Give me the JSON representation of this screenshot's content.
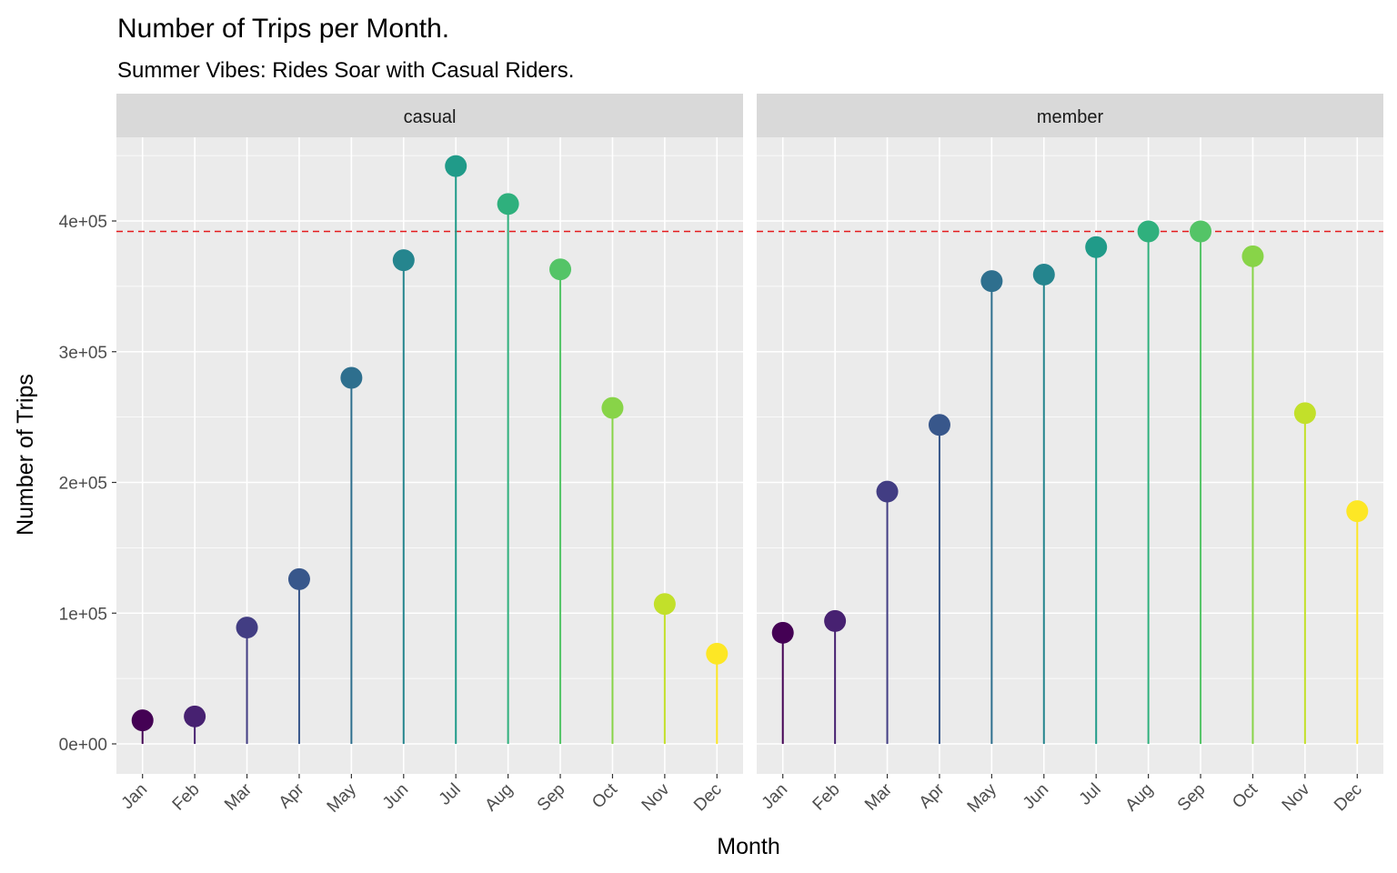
{
  "chart_data": {
    "type": "lollipop",
    "title": "Number of Trips per Month.",
    "subtitle": "Summer Vibes: Rides Soar with Casual Riders.",
    "xlabel": "Month",
    "ylabel": "Number of Trips",
    "categories": [
      "Jan",
      "Feb",
      "Mar",
      "Apr",
      "May",
      "Jun",
      "Jul",
      "Aug",
      "Sep",
      "Oct",
      "Nov",
      "Dec"
    ],
    "ylim": [
      -22000,
      468000
    ],
    "yticks": [
      0,
      100000,
      200000,
      300000,
      400000
    ],
    "ytick_labels": [
      "0e+00",
      "1e+05",
      "2e+05",
      "3e+05",
      "4e+05"
    ],
    "reference_line": {
      "value": 392000,
      "style": "dashed",
      "color": "#e41a1c"
    },
    "grid": true,
    "legend": "none",
    "colors": [
      "#440154",
      "#482878",
      "#3e4989",
      "#31688e",
      "#26828e",
      "#1f9e89",
      "#35b779",
      "#6ece58",
      "#b5de2b",
      "#fde725"
    ],
    "panels": [
      {
        "name": "casual",
        "values": [
          18000,
          21000,
          89000,
          126000,
          280000,
          370000,
          442000,
          413000,
          363000,
          257000,
          107000,
          69000
        ]
      },
      {
        "name": "member",
        "values": [
          85000,
          94000,
          193000,
          244000,
          354000,
          359000,
          380000,
          392000,
          392000,
          373000,
          253000,
          178000
        ]
      }
    ]
  }
}
